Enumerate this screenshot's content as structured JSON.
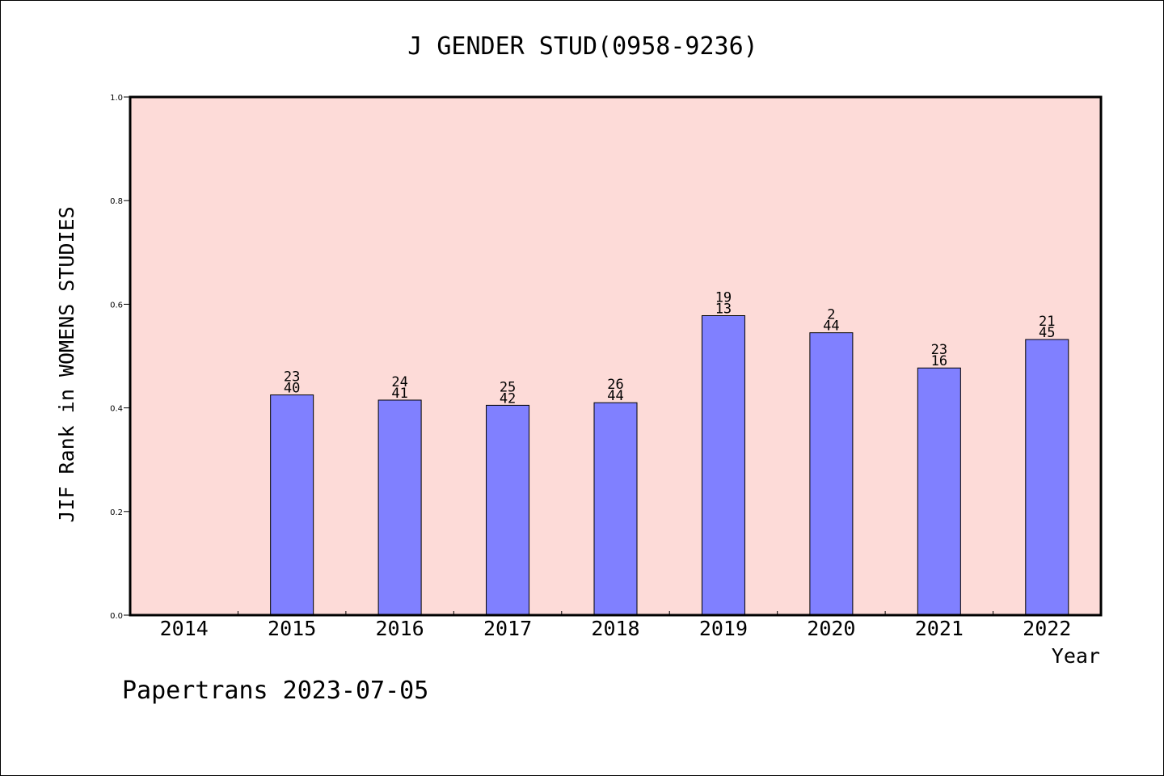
{
  "chart_data": {
    "type": "bar",
    "title": "J GENDER STUD(0958-9236)",
    "xlabel": "Year",
    "ylabel": "JIF Rank in WOMENS STUDIES",
    "footer": "Papertrans 2023-07-05",
    "categories": [
      "2014",
      "2015",
      "2016",
      "2017",
      "2018",
      "2019",
      "2020",
      "2021",
      "2022"
    ],
    "values": [
      null,
      0.425,
      0.415,
      0.405,
      0.41,
      0.578,
      0.545,
      0.477,
      0.532
    ],
    "bar_labels": [
      null,
      [
        "23",
        "40"
      ],
      [
        "24",
        "41"
      ],
      [
        "25",
        "42"
      ],
      [
        "26",
        "44"
      ],
      [
        "19",
        "13"
      ],
      [
        "2",
        "44"
      ],
      [
        "23",
        "16"
      ],
      [
        "21",
        "45"
      ]
    ],
    "ylim": [
      0,
      1.0
    ],
    "yticks": [
      "0.0",
      "0.2",
      "0.4",
      "0.6",
      "0.8",
      "1.0"
    ],
    "colors": {
      "plot_bg": "#fddbd8",
      "bar": "#8080ff",
      "bar_edge": "#000000",
      "axis": "#000000"
    },
    "grid": false
  }
}
